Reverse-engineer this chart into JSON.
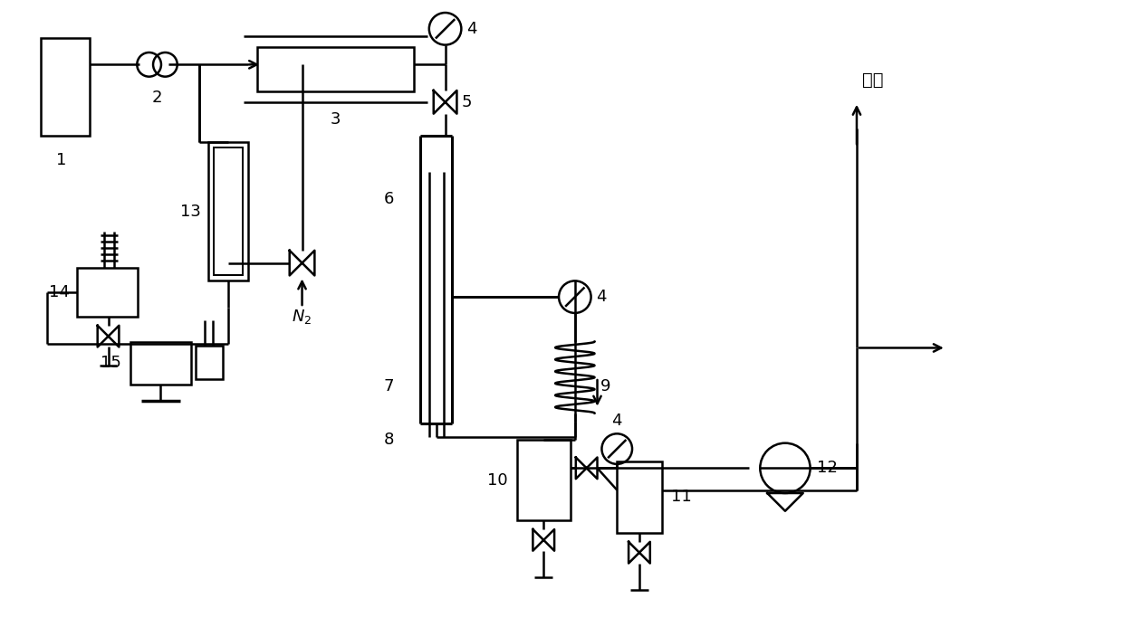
{
  "bg_color": "#ffffff",
  "line_color": "#000000",
  "figsize": [
    12.4,
    6.83
  ],
  "dpi": 100
}
